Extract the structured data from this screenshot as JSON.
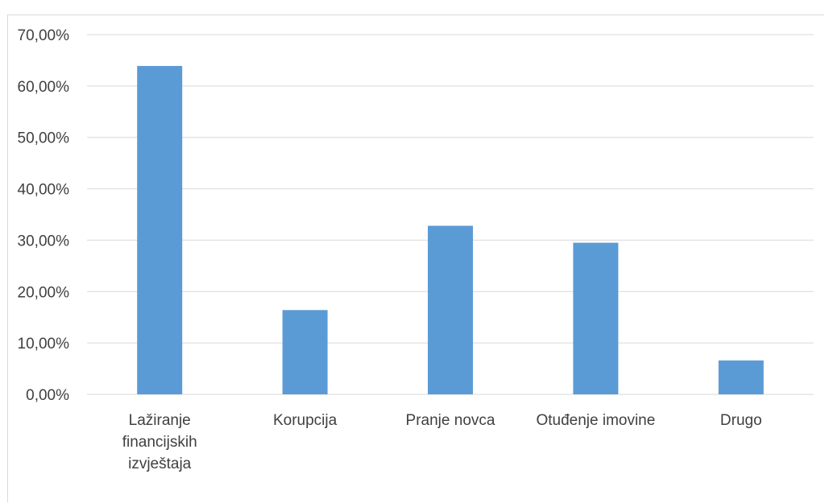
{
  "chart_data": {
    "type": "bar",
    "title": "",
    "xlabel": "",
    "ylabel": "",
    "ylim": [
      0,
      70
    ],
    "y_ticks": [
      "0,00%",
      "10,00%",
      "20,00%",
      "30,00%",
      "40,00%",
      "50,00%",
      "60,00%",
      "70,00%"
    ],
    "categories": [
      [
        "Lažiranje",
        "financijskih",
        "izvještaja"
      ],
      [
        "Korupcija"
      ],
      [
        "Pranje novca"
      ],
      [
        "Otuđenje imovine"
      ],
      [
        "Drugo"
      ]
    ],
    "values": [
      63.9,
      16.4,
      32.8,
      29.5,
      6.6
    ],
    "unit": "%",
    "grid": true,
    "legend": "none",
    "colors": {
      "bar": "#5b9bd5",
      "grid": "#d9d9d9",
      "text": "#404040"
    }
  }
}
